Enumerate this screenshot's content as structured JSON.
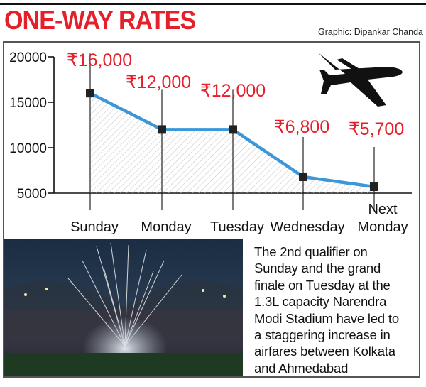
{
  "header": {
    "title": "ONE-WAY RATES",
    "credit": "Graphic: Dipankar Chanda"
  },
  "chart_data": {
    "type": "line",
    "categories": [
      "Sunday",
      "Monday",
      "Tuesday",
      "Wednesday",
      "Next Monday"
    ],
    "values": [
      16000,
      12000,
      12000,
      6800,
      5700
    ],
    "data_labels": [
      "₹16,000",
      "₹12,000",
      "₹12,000",
      "₹6,800",
      "₹5,700"
    ],
    "y_ticks": [
      "20000",
      "15000",
      "10000",
      "5000"
    ],
    "ylim": [
      5000,
      20000
    ],
    "grid": false,
    "fill": "hatched area under line",
    "colors": {
      "line": "#3b97d8",
      "label": "#e5202a",
      "marker": "#222222"
    }
  },
  "photo": {
    "icon": "stadium-fireworks-photo"
  },
  "caption": {
    "lines": [
      "The 2nd qualifier on",
      "Sunday and the grand",
      "finale on Tuesday at the",
      "1.3L capacity Narendra",
      "Modi Stadium have led to",
      "a staggering increase in",
      "airfares between Kolkata",
      "and Ahmedabad"
    ]
  },
  "decor": {
    "icon": "airplane-icon"
  }
}
